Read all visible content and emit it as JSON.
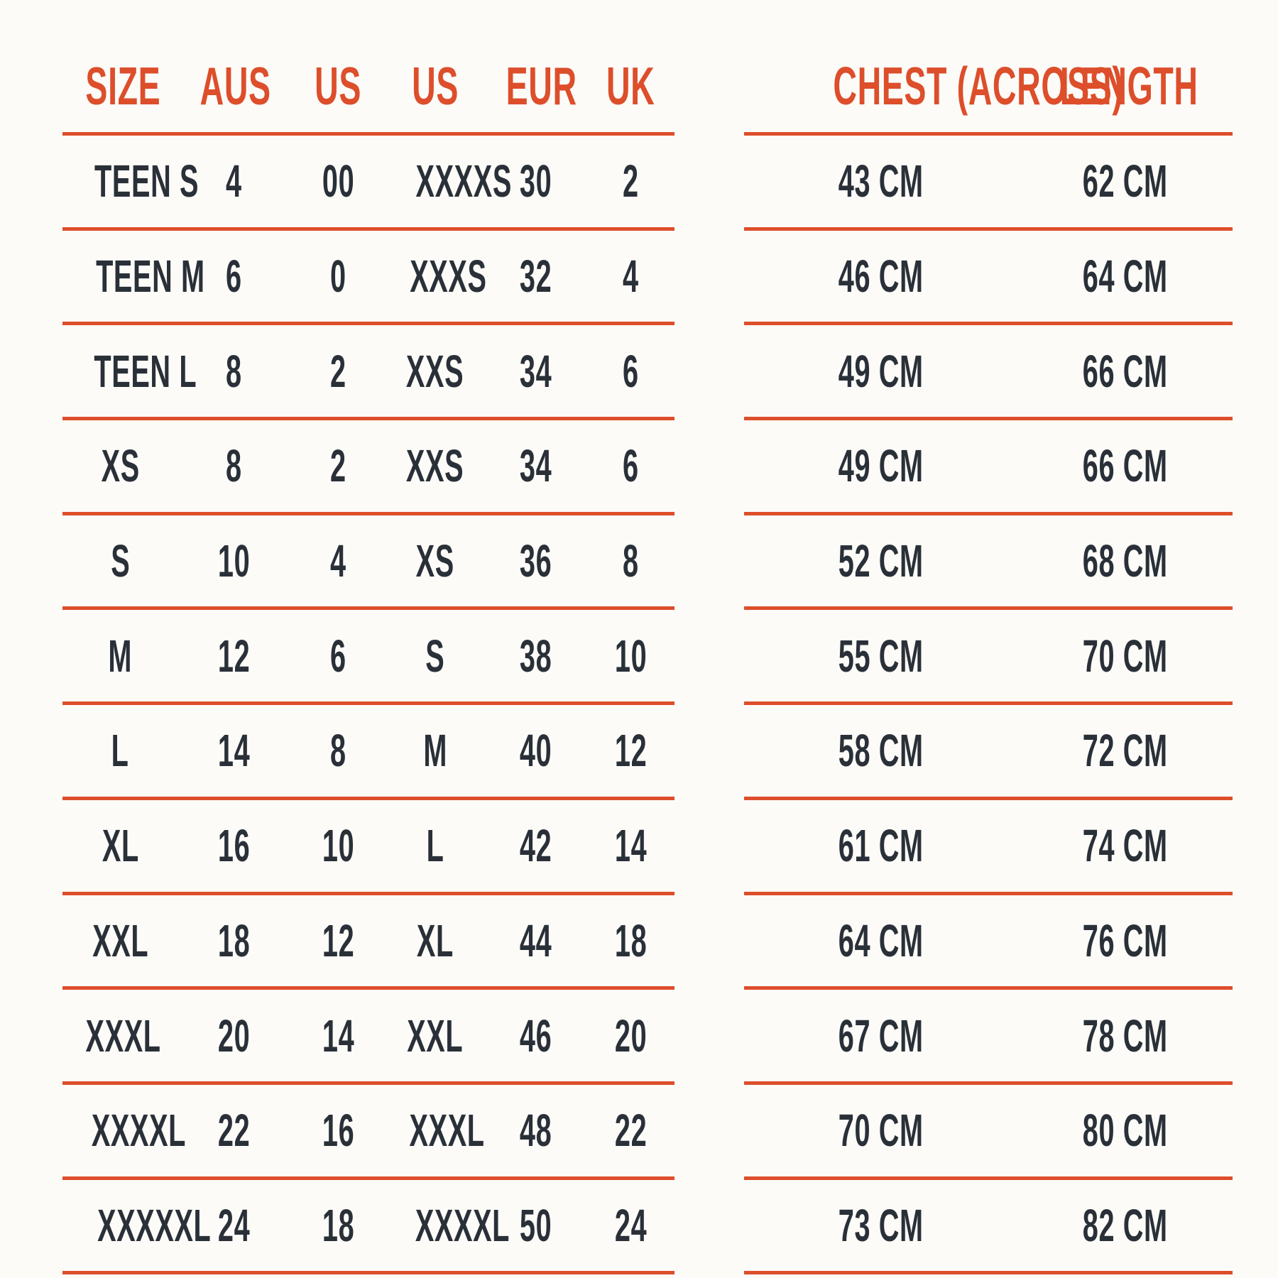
{
  "colors": {
    "accent": "#DD4E2B",
    "ink": "#2A3038",
    "background": "#FCFBF8"
  },
  "chart_data": [
    {
      "type": "table",
      "name": "size-conversion-table",
      "columns": [
        "SIZE",
        "AUS",
        "US",
        "US",
        "EUR",
        "UK"
      ],
      "rows": [
        [
          "TEEN S",
          "4",
          "00",
          "XXXXS",
          "30",
          "2"
        ],
        [
          "TEEN M",
          "6",
          "0",
          "XXXS",
          "32",
          "4"
        ],
        [
          "TEEN L",
          "8",
          "2",
          "XXS",
          "34",
          "6"
        ],
        [
          "XS",
          "8",
          "2",
          "XXS",
          "34",
          "6"
        ],
        [
          "S",
          "10",
          "4",
          "XS",
          "36",
          "8"
        ],
        [
          "M",
          "12",
          "6",
          "S",
          "38",
          "10"
        ],
        [
          "L",
          "14",
          "8",
          "M",
          "40",
          "12"
        ],
        [
          "XL",
          "16",
          "10",
          "L",
          "42",
          "14"
        ],
        [
          "XXL",
          "18",
          "12",
          "XL",
          "44",
          "18"
        ],
        [
          "XXXL",
          "20",
          "14",
          "XXL",
          "46",
          "20"
        ],
        [
          "XXXXL",
          "22",
          "16",
          "XXXL",
          "48",
          "22"
        ],
        [
          "XXXXXL",
          "24",
          "18",
          "XXXXL",
          "50",
          "24"
        ]
      ]
    },
    {
      "type": "table",
      "name": "garment-measurements-table",
      "columns": [
        "CHEST (ACROSS)",
        "LENGTH"
      ],
      "rows": [
        [
          "43 CM",
          "62 CM"
        ],
        [
          "46 CM",
          "64 CM"
        ],
        [
          "49 CM",
          "66 CM"
        ],
        [
          "49 CM",
          "66 CM"
        ],
        [
          "52 CM",
          "68 CM"
        ],
        [
          "55 CM",
          "70 CM"
        ],
        [
          "58 CM",
          "72 CM"
        ],
        [
          "61 CM",
          "74 CM"
        ],
        [
          "64 CM",
          "76 CM"
        ],
        [
          "67 CM",
          "78 CM"
        ],
        [
          "70 CM",
          "80 CM"
        ],
        [
          "73 CM",
          "82 CM"
        ]
      ]
    }
  ]
}
